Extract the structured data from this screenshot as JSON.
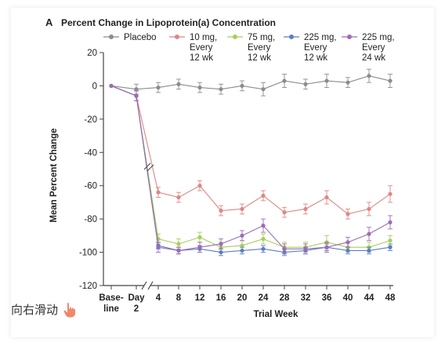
{
  "panel_letter": "A",
  "swipe_hint": "向右滑动",
  "chart_data": {
    "type": "line",
    "title": "Percent Change in Lipoprotein(a) Concentration",
    "ylabel": "Mean Percent Change",
    "xlabel": "Trial  Week",
    "ylim": [
      -120,
      20
    ],
    "yticks": [
      20,
      0,
      -20,
      -40,
      -60,
      -80,
      -100,
      -120
    ],
    "categories": [
      "Base-\nline",
      "Day\n2",
      "4",
      "8",
      "12",
      "16",
      "20",
      "24",
      "28",
      "32",
      "36",
      "40",
      "44",
      "48"
    ],
    "legend_position": "top",
    "axis_break": "between Day 2 and week 4",
    "series": [
      {
        "name": "Placebo",
        "color": "#8c8c8c",
        "values": [
          0,
          -2,
          -1,
          1,
          -1,
          -2,
          0,
          -2,
          3,
          1,
          3,
          2,
          6,
          3
        ],
        "err": [
          0,
          3,
          3,
          3,
          3,
          3,
          3,
          4,
          4,
          3,
          4,
          3,
          4,
          4
        ]
      },
      {
        "name": "10 mg,\nEvery\n12 wk",
        "color": "#e08585",
        "values": [
          0,
          -6,
          -64,
          -67,
          -60,
          -75,
          -74,
          -66,
          -76,
          -74,
          -67,
          -77,
          -74,
          -65
        ],
        "err": [
          0,
          3,
          3,
          3,
          3,
          3,
          3,
          3,
          3,
          3,
          4,
          3,
          4,
          5
        ]
      },
      {
        "name": "75 mg,\nEvery\n12 wk",
        "color": "#a8cf5a",
        "values": [
          0,
          -6,
          -92,
          -95,
          -91,
          -97,
          -96,
          -92,
          -97,
          -97,
          -94,
          -97,
          -97,
          -93
        ],
        "err": [
          0,
          3,
          3,
          3,
          3,
          3,
          3,
          3,
          3,
          3,
          4,
          3,
          3,
          3
        ]
      },
      {
        "name": "225 mg,\nEvery\n12 wk",
        "color": "#5b7ec6",
        "values": [
          0,
          -6,
          -96,
          -99,
          -98,
          -100,
          -99,
          -98,
          -100,
          -99,
          -97,
          -99,
          -99,
          -97
        ],
        "err": [
          0,
          3,
          2,
          2,
          2,
          2,
          2,
          2,
          2,
          2,
          2,
          2,
          2,
          2
        ]
      },
      {
        "name": "225 mg,\nEvery\n24 wk",
        "color": "#9d6bb4",
        "values": [
          0,
          -6,
          -97,
          -99,
          -97,
          -95,
          -90,
          -84,
          -98,
          -98,
          -97,
          -94,
          -89,
          -82
        ],
        "err": [
          0,
          3,
          3,
          2,
          3,
          3,
          3,
          4,
          3,
          3,
          3,
          3,
          4,
          4
        ]
      }
    ]
  }
}
